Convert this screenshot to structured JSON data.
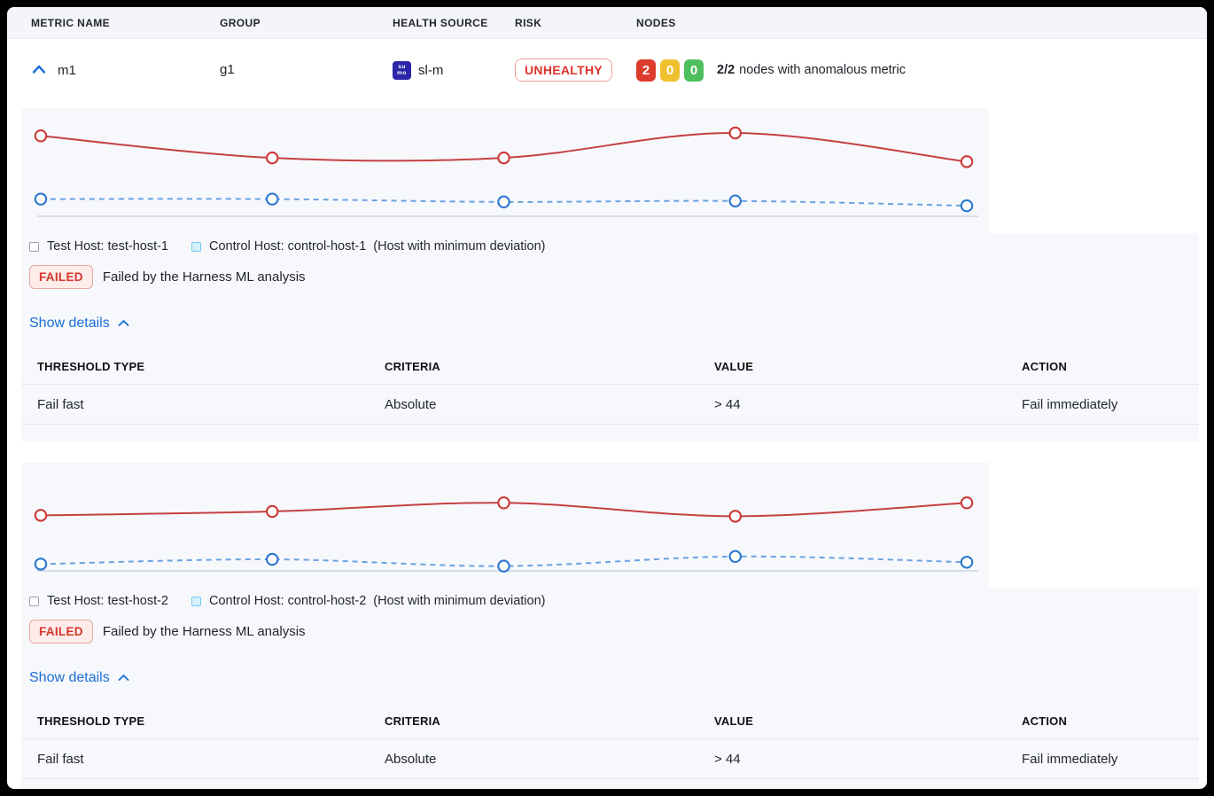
{
  "header": {
    "columns": [
      "METRIC NAME",
      "GROUP",
      "HEALTH SOURCE",
      "RISK",
      "NODES"
    ]
  },
  "metric_row": {
    "name": "m1",
    "group": "g1",
    "health_source": {
      "label": "sl-m",
      "icon_lines": [
        "su",
        "mo"
      ]
    },
    "risk": "UNHEALTHY",
    "nodes": {
      "counts": [
        {
          "value": "2",
          "color": "#dd3b2b"
        },
        {
          "value": "0",
          "color": "#f0c12f"
        },
        {
          "value": "0",
          "color": "#4fbe5e"
        }
      ],
      "summary_bold": "2/2",
      "summary_text": "nodes with anomalous metric"
    }
  },
  "sections": [
    {
      "legend": {
        "test_label": "Test Host: test-host-1",
        "control_label": "Control Host: control-host-1",
        "control_note": "(Host with minimum deviation)"
      },
      "status": {
        "badge": "FAILED",
        "message": "Failed by the Harness ML analysis"
      },
      "details_toggle": "Show details",
      "table": {
        "headers": [
          "THRESHOLD TYPE",
          "CRITERIA",
          "VALUE",
          "ACTION"
        ],
        "rows": [
          [
            "Fail fast",
            "Absolute",
            "> 44",
            "Fail immediately"
          ]
        ]
      }
    },
    {
      "legend": {
        "test_label": "Test Host: test-host-2",
        "control_label": "Control Host: control-host-2",
        "control_note": "(Host with minimum deviation)"
      },
      "status": {
        "badge": "FAILED",
        "message": "Failed by the Harness ML analysis"
      },
      "details_toggle": "Show details",
      "table": {
        "headers": [
          "THRESHOLD TYPE",
          "CRITERIA",
          "VALUE",
          "ACTION"
        ],
        "rows": [
          [
            "Fail fast",
            "Absolute",
            "> 44",
            "Fail immediately"
          ]
        ]
      }
    }
  ],
  "chart_data": [
    {
      "type": "line",
      "x": [
        1,
        2,
        3,
        4,
        5
      ],
      "x_axis_labels_shown": false,
      "y_axis_labels_shown": false,
      "ylim": [
        0,
        100
      ],
      "grid": false,
      "series": [
        {
          "name": "Test Host: test-host-1",
          "color": "#c5413e",
          "marker_color": "#cb3a39",
          "line_style": "solid",
          "marker": "circle",
          "values": [
            84,
            61,
            61,
            87,
            57
          ]
        },
        {
          "name": "Control Host: control-host-1",
          "color": "#6aa1e3",
          "marker_color": "#2e77d0",
          "line_style": "dashed",
          "marker": "circle",
          "values": [
            18,
            18,
            15,
            16,
            11
          ]
        }
      ]
    },
    {
      "type": "line",
      "x": [
        1,
        2,
        3,
        4,
        5
      ],
      "x_axis_labels_shown": false,
      "y_axis_labels_shown": false,
      "ylim": [
        0,
        100
      ],
      "grid": false,
      "series": [
        {
          "name": "Test Host: test-host-2",
          "color": "#c5413e",
          "marker_color": "#cb3a39",
          "line_style": "solid",
          "marker": "circle",
          "values": [
            58,
            62,
            71,
            57,
            71
          ]
        },
        {
          "name": "Control Host: control-host-2",
          "color": "#6aa1e3",
          "marker_color": "#2e77d0",
          "line_style": "dashed",
          "marker": "circle",
          "values": [
            7,
            12,
            5,
            15,
            9
          ]
        }
      ]
    }
  ],
  "colors": {
    "accent_blue": "#1a6fd6",
    "risk_red": "#e0342b",
    "failed_text": "#d5352b",
    "failed_bg": "#fdecea",
    "node_red": "#dd3b2b",
    "node_amber": "#f0c12f",
    "node_green": "#4fbe5e",
    "card_bg": "#f7f8fc",
    "header_bg": "#f4f5f9",
    "axis_line": "#b8c0d2"
  }
}
